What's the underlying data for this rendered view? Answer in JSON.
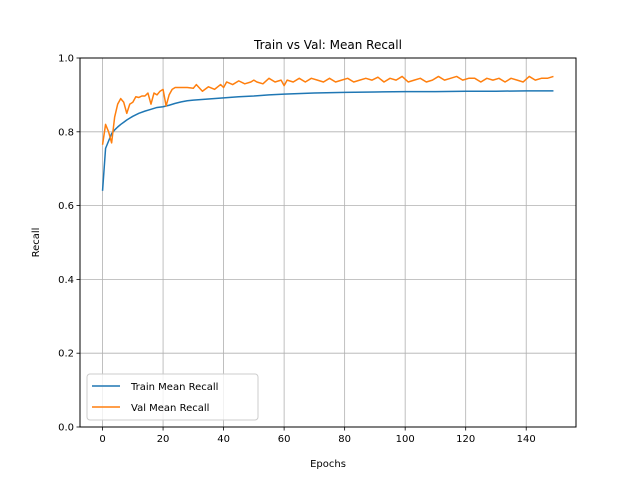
{
  "chart_data": {
    "type": "line",
    "title": "Train vs Val: Mean Recall",
    "xlabel": "Epochs",
    "ylabel": "Recall",
    "xlim": [
      -7.45,
      156.45
    ],
    "ylim": [
      0.0,
      1.0
    ],
    "xticks": [
      0,
      20,
      40,
      60,
      80,
      100,
      120,
      140
    ],
    "yticks": [
      0.0,
      0.2,
      0.4,
      0.6,
      0.8,
      1.0
    ],
    "xtick_labels": [
      "0",
      "20",
      "40",
      "60",
      "80",
      "100",
      "120",
      "140"
    ],
    "ytick_labels": [
      "0.0",
      "0.2",
      "0.4",
      "0.6",
      "0.8",
      "1.0"
    ],
    "grid": true,
    "legend_position": "lower-left",
    "series": [
      {
        "name": "Train Mean Recall",
        "color": "#1f77b4",
        "x": [
          0,
          1,
          2,
          3,
          4,
          5,
          6,
          7,
          8,
          9,
          10,
          12,
          14,
          16,
          18,
          20,
          22,
          24,
          26,
          28,
          30,
          35,
          40,
          45,
          50,
          55,
          60,
          70,
          80,
          90,
          100,
          110,
          120,
          130,
          140,
          149
        ],
        "y": [
          0.64,
          0.755,
          0.775,
          0.795,
          0.805,
          0.813,
          0.82,
          0.826,
          0.832,
          0.837,
          0.842,
          0.85,
          0.856,
          0.861,
          0.866,
          0.868,
          0.872,
          0.877,
          0.881,
          0.884,
          0.886,
          0.889,
          0.892,
          0.895,
          0.897,
          0.9,
          0.902,
          0.905,
          0.907,
          0.908,
          0.909,
          0.909,
          0.91,
          0.91,
          0.911,
          0.911
        ]
      },
      {
        "name": "Val Mean Recall",
        "color": "#ff7f0e",
        "x": [
          0,
          1,
          2,
          3,
          4,
          5,
          6,
          7,
          8,
          9,
          10,
          11,
          12,
          13,
          14,
          15,
          16,
          17,
          18,
          19,
          20,
          21,
          22,
          23,
          24,
          26,
          28,
          30,
          31,
          33,
          35,
          37,
          39,
          40,
          41,
          43,
          45,
          47,
          49,
          50,
          51,
          53,
          55,
          57,
          59,
          60,
          61,
          63,
          65,
          67,
          69,
          71,
          73,
          75,
          77,
          79,
          81,
          83,
          85,
          87,
          89,
          91,
          93,
          95,
          97,
          99,
          101,
          103,
          105,
          107,
          109,
          111,
          113,
          115,
          117,
          119,
          121,
          123,
          125,
          127,
          129,
          131,
          133,
          135,
          137,
          139,
          141,
          143,
          145,
          147,
          149
        ],
        "y": [
          0.765,
          0.82,
          0.8,
          0.77,
          0.84,
          0.875,
          0.89,
          0.88,
          0.85,
          0.875,
          0.88,
          0.895,
          0.893,
          0.897,
          0.897,
          0.905,
          0.875,
          0.905,
          0.9,
          0.91,
          0.915,
          0.87,
          0.9,
          0.915,
          0.92,
          0.92,
          0.92,
          0.918,
          0.928,
          0.91,
          0.922,
          0.915,
          0.928,
          0.92,
          0.935,
          0.928,
          0.938,
          0.93,
          0.935,
          0.94,
          0.935,
          0.93,
          0.945,
          0.935,
          0.94,
          0.925,
          0.94,
          0.935,
          0.945,
          0.935,
          0.945,
          0.94,
          0.935,
          0.945,
          0.935,
          0.94,
          0.945,
          0.935,
          0.94,
          0.945,
          0.94,
          0.948,
          0.935,
          0.945,
          0.94,
          0.95,
          0.935,
          0.94,
          0.945,
          0.935,
          0.94,
          0.95,
          0.94,
          0.945,
          0.95,
          0.94,
          0.945,
          0.945,
          0.935,
          0.945,
          0.94,
          0.945,
          0.935,
          0.945,
          0.94,
          0.935,
          0.95,
          0.94,
          0.945,
          0.945,
          0.95
        ]
      }
    ]
  }
}
